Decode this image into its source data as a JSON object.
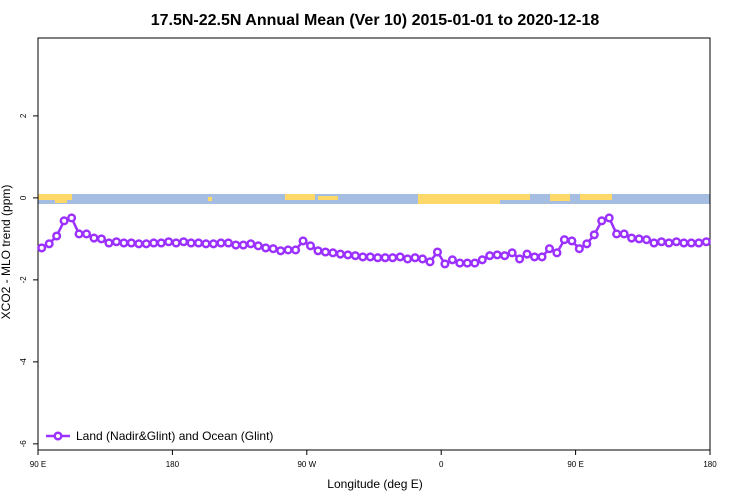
{
  "chart_data": {
    "type": "line",
    "title": "17.5N-22.5N Annual Mean (Ver 10)   2015-01-01 to 2020-12-18",
    "x_label": "Longitude (deg E)",
    "y_label": "XCO2 - MLO trend (ppm)",
    "xlim": [
      90,
      540
    ],
    "ylim": [
      -6.15,
      3.9
    ],
    "xticks": [
      {
        "value": 90,
        "label": "90 E"
      },
      180,
      {
        "value": 270,
        "label": "90 W"
      },
      {
        "value": 360,
        "label": "0"
      },
      {
        "value": 450,
        "label": "90 E"
      },
      {
        "value": 540,
        "label": "180"
      }
    ],
    "yticks": [
      -6,
      -4,
      -2,
      0,
      2
    ],
    "legend": "bottom-left",
    "x": [
      92.5,
      97.5,
      102.5,
      107.5,
      112.5,
      117.5,
      122.5,
      127.5,
      132.5,
      137.5,
      142.5,
      147.5,
      152.5,
      157.5,
      162.5,
      167.5,
      172.5,
      177.5,
      182.5,
      187.5,
      192.5,
      197.5,
      202.5,
      207.5,
      212.5,
      217.5,
      222.5,
      227.5,
      232.5,
      237.5,
      242.5,
      247.5,
      252.5,
      257.5,
      262.5,
      267.5,
      272.5,
      277.5,
      282.5,
      287.5,
      292.5,
      297.5,
      302.5,
      307.5,
      312.5,
      317.5,
      322.5,
      327.5,
      332.5,
      337.5,
      342.5,
      347.5,
      352.5,
      357.5,
      362.5,
      367.5,
      372.5,
      377.5,
      382.5,
      387.5,
      392.5,
      397.5,
      402.5,
      407.5,
      412.5,
      417.5,
      422.5,
      427.5,
      432.5,
      437.5,
      442.5,
      447.5,
      452.5,
      457.5,
      462.5,
      467.5,
      472.5,
      477.5,
      482.5,
      487.5,
      492.5,
      497.5,
      502.5,
      507.5,
      512.5,
      517.5,
      522.5,
      527.5,
      532.5,
      537.5
    ],
    "series": [
      {
        "name": "Land (Nadir&Glint) and Ocean (Glint)",
        "color": "#9b30ff",
        "values": [
          -1.22,
          -1.12,
          -0.93,
          -0.56,
          -0.49,
          -0.88,
          -0.88,
          -0.98,
          -1.0,
          -1.1,
          -1.07,
          -1.1,
          -1.1,
          -1.12,
          -1.12,
          -1.1,
          -1.1,
          -1.07,
          -1.1,
          -1.07,
          -1.1,
          -1.1,
          -1.12,
          -1.12,
          -1.1,
          -1.1,
          -1.15,
          -1.15,
          -1.12,
          -1.17,
          -1.22,
          -1.24,
          -1.29,
          -1.27,
          -1.27,
          -1.05,
          -1.17,
          -1.29,
          -1.32,
          -1.34,
          -1.37,
          -1.39,
          -1.41,
          -1.44,
          -1.44,
          -1.46,
          -1.46,
          -1.46,
          -1.44,
          -1.49,
          -1.46,
          -1.49,
          -1.56,
          -1.32,
          -1.61,
          -1.51,
          -1.59,
          -1.59,
          -1.59,
          -1.51,
          -1.41,
          -1.39,
          -1.41,
          -1.34,
          -1.49,
          -1.37,
          -1.44,
          -1.44,
          -1.24,
          -1.34,
          -1.02,
          -1.05,
          -1.24,
          -1.12,
          -0.9,
          -0.56,
          -0.49,
          -0.88,
          -0.88,
          -0.98,
          -1.0,
          -1.02,
          -1.1,
          -1.07,
          -1.1,
          -1.07,
          -1.1,
          -1.1,
          -1.1,
          -1.07
        ]
      }
    ]
  }
}
